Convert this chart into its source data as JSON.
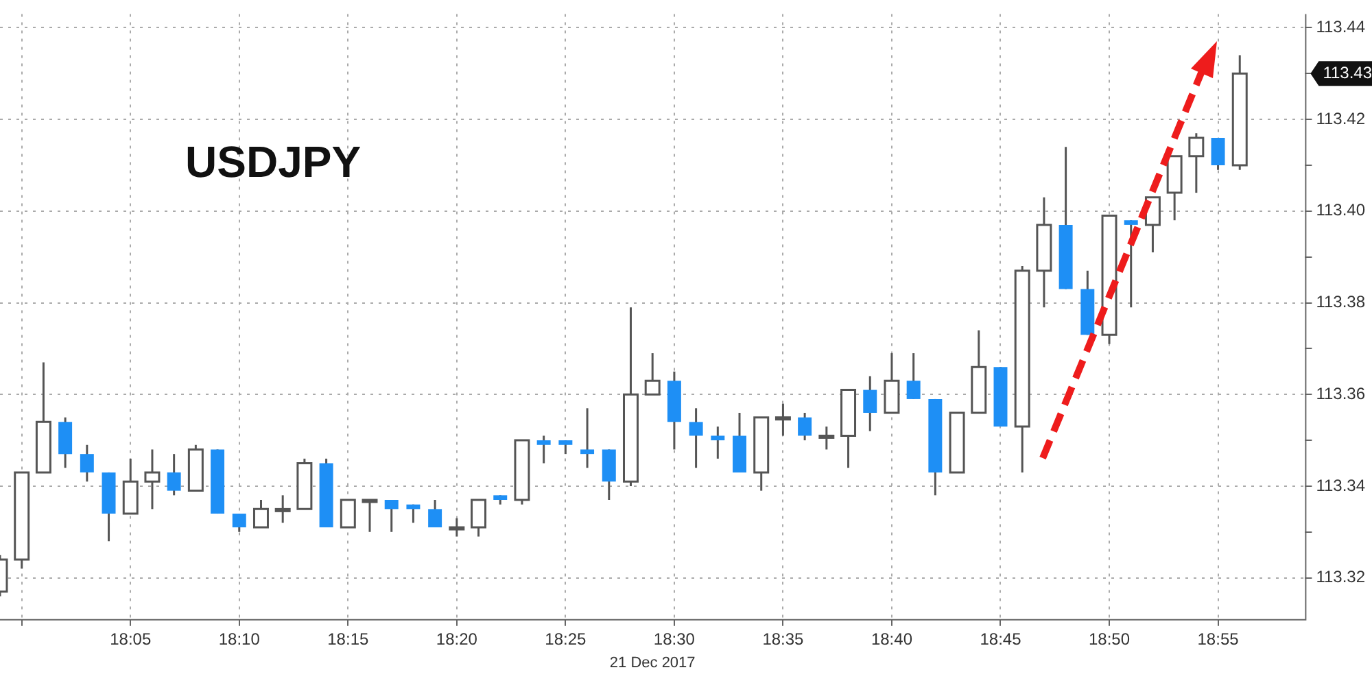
{
  "chart_data": {
    "type": "candlestick",
    "title": "USDJPY",
    "xlabel": "21 Dec 2017",
    "x": [
      "2017-12-21T17:59",
      "2017-12-21T18:00",
      "2017-12-21T18:01",
      "2017-12-21T18:02",
      "2017-12-21T18:03",
      "2017-12-21T18:04",
      "2017-12-21T18:05",
      "2017-12-21T18:06",
      "2017-12-21T18:07",
      "2017-12-21T18:08",
      "2017-12-21T18:09",
      "2017-12-21T18:10",
      "2017-12-21T18:11",
      "2017-12-21T18:12",
      "2017-12-21T18:13",
      "2017-12-21T18:14",
      "2017-12-21T18:15",
      "2017-12-21T18:16",
      "2017-12-21T18:17",
      "2017-12-21T18:18",
      "2017-12-21T18:19",
      "2017-12-21T18:20",
      "2017-12-21T18:21",
      "2017-12-21T18:22",
      "2017-12-21T18:23",
      "2017-12-21T18:24",
      "2017-12-21T18:25",
      "2017-12-21T18:26",
      "2017-12-21T18:27",
      "2017-12-21T18:28",
      "2017-12-21T18:29",
      "2017-12-21T18:30",
      "2017-12-21T18:31",
      "2017-12-21T18:32",
      "2017-12-21T18:33",
      "2017-12-21T18:34",
      "2017-12-21T18:35",
      "2017-12-21T18:36",
      "2017-12-21T18:37",
      "2017-12-21T18:38",
      "2017-12-21T18:39",
      "2017-12-21T18:40",
      "2017-12-21T18:41",
      "2017-12-21T18:42",
      "2017-12-21T18:43",
      "2017-12-21T18:44",
      "2017-12-21T18:45",
      "2017-12-21T18:46",
      "2017-12-21T18:47",
      "2017-12-21T18:48",
      "2017-12-21T18:49",
      "2017-12-21T18:50",
      "2017-12-21T18:51",
      "2017-12-21T18:52",
      "2017-12-21T18:53",
      "2017-12-21T18:54",
      "2017-12-21T18:55",
      "2017-12-21T18:56"
    ],
    "ohlc": [
      [
        113.317,
        113.325,
        113.316,
        113.324
      ],
      [
        113.324,
        113.343,
        113.322,
        113.343
      ],
      [
        113.343,
        113.367,
        113.343,
        113.354
      ],
      [
        113.354,
        113.355,
        113.344,
        113.347
      ],
      [
        113.347,
        113.349,
        113.341,
        113.343
      ],
      [
        113.343,
        113.343,
        113.328,
        113.334
      ],
      [
        113.334,
        113.346,
        113.334,
        113.341
      ],
      [
        113.341,
        113.348,
        113.335,
        113.343
      ],
      [
        113.343,
        113.347,
        113.338,
        113.339
      ],
      [
        113.339,
        113.349,
        113.339,
        113.348
      ],
      [
        113.348,
        113.348,
        113.334,
        113.334
      ],
      [
        113.334,
        113.334,
        113.33,
        113.331
      ],
      [
        113.331,
        113.337,
        113.331,
        113.335
      ],
      [
        113.335,
        113.338,
        113.332,
        113.335
      ],
      [
        113.335,
        113.346,
        113.335,
        113.345
      ],
      [
        113.345,
        113.346,
        113.331,
        113.331
      ],
      [
        113.331,
        113.337,
        113.331,
        113.337
      ],
      [
        113.337,
        113.337,
        113.33,
        113.337
      ],
      [
        113.337,
        113.337,
        113.33,
        113.335
      ],
      [
        113.336,
        113.336,
        113.332,
        113.335
      ],
      [
        113.335,
        113.337,
        113.331,
        113.331
      ],
      [
        113.331,
        113.333,
        113.329,
        113.331
      ],
      [
        113.331,
        113.337,
        113.329,
        113.337
      ],
      [
        113.338,
        113.338,
        113.336,
        113.337
      ],
      [
        113.337,
        113.35,
        113.336,
        113.35
      ],
      [
        113.35,
        113.351,
        113.345,
        113.349
      ],
      [
        113.35,
        113.35,
        113.347,
        113.349
      ],
      [
        113.348,
        113.357,
        113.344,
        113.347
      ],
      [
        113.348,
        113.348,
        113.337,
        113.341
      ],
      [
        113.341,
        113.379,
        113.34,
        113.36
      ],
      [
        113.36,
        113.369,
        113.36,
        113.363
      ],
      [
        113.363,
        113.365,
        113.348,
        113.354
      ],
      [
        113.354,
        113.357,
        113.344,
        113.351
      ],
      [
        113.351,
        113.353,
        113.346,
        113.35
      ],
      [
        113.351,
        113.356,
        113.343,
        113.343
      ],
      [
        113.343,
        113.355,
        113.339,
        113.355
      ],
      [
        113.355,
        113.358,
        113.351,
        113.355
      ],
      [
        113.355,
        113.356,
        113.35,
        113.351
      ],
      [
        113.351,
        113.353,
        113.348,
        113.351
      ],
      [
        113.351,
        113.361,
        113.344,
        113.361
      ],
      [
        113.361,
        113.364,
        113.352,
        113.356
      ],
      [
        113.356,
        113.369,
        113.356,
        113.363
      ],
      [
        113.363,
        113.369,
        113.359,
        113.359
      ],
      [
        113.359,
        113.359,
        113.338,
        113.343
      ],
      [
        113.343,
        113.356,
        113.343,
        113.356
      ],
      [
        113.356,
        113.374,
        113.356,
        113.366
      ],
      [
        113.366,
        113.366,
        113.353,
        113.353
      ],
      [
        113.353,
        113.388,
        113.343,
        113.387
      ],
      [
        113.387,
        113.403,
        113.379,
        113.397
      ],
      [
        113.397,
        113.414,
        113.383,
        113.383
      ],
      [
        113.383,
        113.387,
        113.373,
        113.373
      ],
      [
        113.373,
        113.399,
        113.371,
        113.399
      ],
      [
        113.398,
        113.398,
        113.379,
        113.397
      ],
      [
        113.397,
        113.403,
        113.391,
        113.403
      ],
      [
        113.404,
        113.412,
        113.398,
        113.412
      ],
      [
        113.412,
        113.417,
        113.404,
        113.416
      ],
      [
        113.416,
        113.416,
        113.409,
        113.41
      ],
      [
        113.41,
        113.434,
        113.409,
        113.43
      ]
    ],
    "colors": [
      "#ffffff",
      "#ffffff",
      "#ffffff",
      "#1e8ff5",
      "#1e8ff5",
      "#1e8ff5",
      "#ffffff",
      "#ffffff",
      "#1e8ff5",
      "#ffffff",
      "#1e8ff5",
      "#1e8ff5",
      "#ffffff",
      "#ffffff",
      "#ffffff",
      "#1e8ff5",
      "#ffffff",
      "#ffffff",
      "#1e8ff5",
      "#1e8ff5",
      "#1e8ff5",
      "#ffffff",
      "#ffffff",
      "#1e8ff5",
      "#ffffff",
      "#1e8ff5",
      "#1e8ff5",
      "#1e8ff5",
      "#1e8ff5",
      "#ffffff",
      "#ffffff",
      "#1e8ff5",
      "#1e8ff5",
      "#1e8ff5",
      "#1e8ff5",
      "#ffffff",
      "#ffffff",
      "#1e8ff5",
      "#ffffff",
      "#ffffff",
      "#1e8ff5",
      "#ffffff",
      "#1e8ff5",
      "#1e8ff5",
      "#ffffff",
      "#ffffff",
      "#1e8ff5",
      "#ffffff",
      "#ffffff",
      "#1e8ff5",
      "#1e8ff5",
      "#ffffff",
      "#1e8ff5",
      "#ffffff",
      "#ffffff",
      "#ffffff",
      "#1e8ff5",
      "#ffffff"
    ],
    "xlim": [
      "2017-12-21T17:59",
      "2017-12-21T18:59"
    ],
    "xticks": [
      {
        "value": "2017-12-21T18:00",
        "label": null
      },
      {
        "value": "2017-12-21T18:05",
        "label": "18:05"
      },
      {
        "value": "2017-12-21T18:10",
        "label": "18:10"
      },
      {
        "value": "2017-12-21T18:15",
        "label": "18:15"
      },
      {
        "value": "2017-12-21T18:20",
        "label": "18:20"
      },
      {
        "value": "2017-12-21T18:25",
        "label": "18:25"
      },
      {
        "value": "2017-12-21T18:30",
        "label": "18:30"
      },
      {
        "value": "2017-12-21T18:35",
        "label": "18:35"
      },
      {
        "value": "2017-12-21T18:40",
        "label": "18:40"
      },
      {
        "value": "2017-12-21T18:45",
        "label": "18:45"
      },
      {
        "value": "2017-12-21T18:50",
        "label": "18:50"
      },
      {
        "value": "2017-12-21T18:55",
        "label": "18:55"
      }
    ],
    "ylim": [
      113.311,
      113.443
    ],
    "yticks": [
      113.32,
      {
        "value": 113.33,
        "label": null
      },
      113.34,
      {
        "value": 113.35,
        "label": null
      },
      113.36,
      {
        "value": 113.37,
        "label": null
      },
      113.38,
      {
        "value": 113.39,
        "label": null
      },
      {
        "value": 113.4,
        "label": "113.40"
      },
      {
        "value": 113.41,
        "label": null
      },
      113.42,
      {
        "value": 113.43,
        "label": null
      },
      113.44
    ],
    "annotations": [
      "113.43"
    ],
    "grid": true,
    "legend": false
  }
}
